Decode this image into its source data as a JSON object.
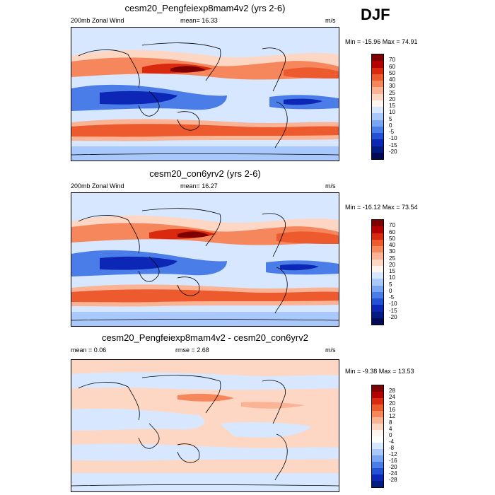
{
  "season": "DJF",
  "panels": [
    {
      "title": "cesm20_Pengfeiexp8mam4v2 (yrs 2-6)",
      "left_label": "200mb Zonal Wind",
      "center_label": "mean=  16.33",
      "right_label": "m/s",
      "minmax": "Min = -15.96 Max =  74.91",
      "levels": [
        "70",
        "60",
        "50",
        "40",
        "30",
        "25",
        "20",
        "15",
        "10",
        "5",
        "0",
        "-5",
        "-10",
        "-15",
        "-20"
      ]
    },
    {
      "title": "cesm20_con6yrv2 (yrs 2-6)",
      "left_label": "200mb Zonal Wind",
      "center_label": "mean=  16.27",
      "right_label": "m/s",
      "minmax": "Min = -16.12 Max =  73.54",
      "levels": [
        "70",
        "60",
        "50",
        "40",
        "30",
        "25",
        "20",
        "15",
        "10",
        "5",
        "0",
        "-5",
        "-10",
        "-15",
        "-20"
      ]
    },
    {
      "title": "cesm20_Pengfeiexp8mam4v2 - cesm20_con6yrv2",
      "left_label": "mean =  0.06",
      "center_label": "rmse =  2.68",
      "right_label": "m/s",
      "minmax": "Min = -9.38 Max =  13.53",
      "levels": [
        "28",
        "24",
        "20",
        "16",
        "12",
        "8",
        "4",
        "0",
        "-4",
        "-8",
        "-12",
        "-16",
        "-20",
        "-24",
        "-28"
      ]
    }
  ],
  "colors": {
    "full_field_scale": [
      "#7f0000",
      "#b40000",
      "#d92a10",
      "#ec5a2e",
      "#f6875d",
      "#fab394",
      "#fdd7c4",
      "#fff5ee",
      "#d7e7ff",
      "#a9c8fb",
      "#7aa5f3",
      "#4a7de8",
      "#2450d6",
      "#0c27b5",
      "#021b80",
      "#000a55"
    ],
    "diff_scale": [
      "#7f0000",
      "#b40000",
      "#d92a10",
      "#ec5a2e",
      "#f6875d",
      "#fab394",
      "#fdd7c4",
      "#fff5ee",
      "#ffffff",
      "#d7e7ff",
      "#a9c8fb",
      "#7aa5f3",
      "#4a7de8",
      "#2450d6",
      "#0c27b5",
      "#021b80",
      "#000a55"
    ]
  }
}
